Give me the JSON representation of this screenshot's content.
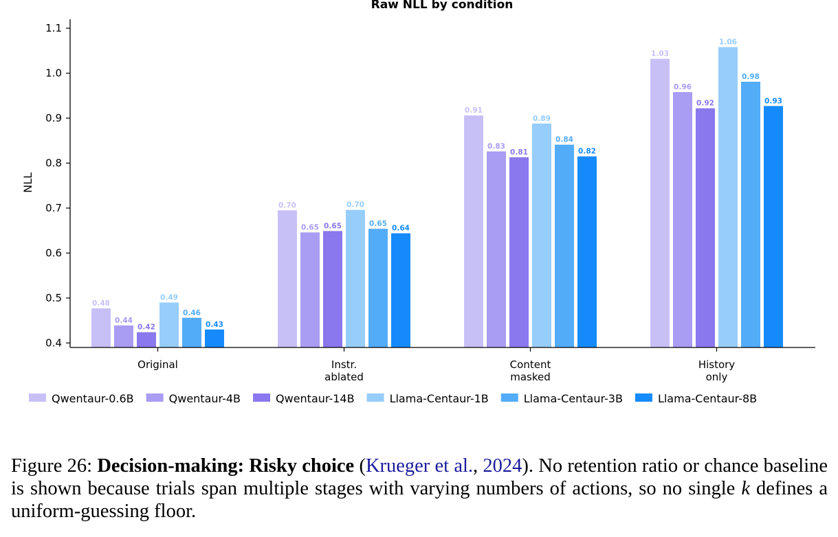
{
  "chart_data": {
    "type": "bar",
    "title": "Raw NLL by condition",
    "xlabel": "",
    "ylabel": "NLL",
    "ylim": [
      0.39,
      1.12
    ],
    "yticks": [
      "0.4",
      "0.5",
      "0.6",
      "0.7",
      "0.8",
      "0.9",
      "1.0",
      "1.1"
    ],
    "categories": [
      [
        "Original"
      ],
      [
        "Instr.",
        "ablated"
      ],
      [
        "Content",
        "masked"
      ],
      [
        "History",
        "only"
      ]
    ],
    "legend_position": "bottom",
    "series": [
      {
        "name": "Qwentaur-0.6B",
        "color": "#c7c0f7",
        "values": [
          0.477,
          0.695,
          0.906,
          1.032
        ],
        "labels": [
          "0.48",
          "0.70",
          "0.91",
          "1.03"
        ]
      },
      {
        "name": "Qwentaur-4B",
        "color": "#a99cf3",
        "values": [
          0.439,
          0.646,
          0.826,
          0.958
        ],
        "labels": [
          "0.44",
          "0.65",
          "0.83",
          "0.96"
        ]
      },
      {
        "name": "Qwentaur-14B",
        "color": "#8a78ee",
        "values": [
          0.424,
          0.649,
          0.813,
          0.922
        ],
        "labels": [
          "0.42",
          "0.65",
          "0.81",
          "0.92"
        ]
      },
      {
        "name": "Llama-Centaur-1B",
        "color": "#97cdfb",
        "values": [
          0.49,
          0.696,
          0.888,
          1.058
        ],
        "labels": [
          "0.49",
          "0.70",
          "0.89",
          "1.06"
        ]
      },
      {
        "name": "Llama-Centaur-3B",
        "color": "#53acf8",
        "values": [
          0.456,
          0.654,
          0.841,
          0.981
        ],
        "labels": [
          "0.46",
          "0.65",
          "0.84",
          "0.98"
        ]
      },
      {
        "name": "Llama-Centaur-8B",
        "color": "#158bfb",
        "values": [
          0.43,
          0.644,
          0.815,
          0.927
        ],
        "labels": [
          "0.43",
          "0.64",
          "0.82",
          "0.93"
        ]
      }
    ]
  },
  "caption": {
    "prefix": "Figure 26: ",
    "bold": "Decision-making: Risky choice",
    "open_paren": " (",
    "cite_author": "Krueger et al.",
    "comma": ", ",
    "cite_year": "2024",
    "rest_1": ").  No retention ratio or chance baseline is shown because trials span multiple stages with varying numbers of actions, so no single ",
    "italic_k": "k",
    "rest_2": " defines a uniform-guessing floor."
  }
}
